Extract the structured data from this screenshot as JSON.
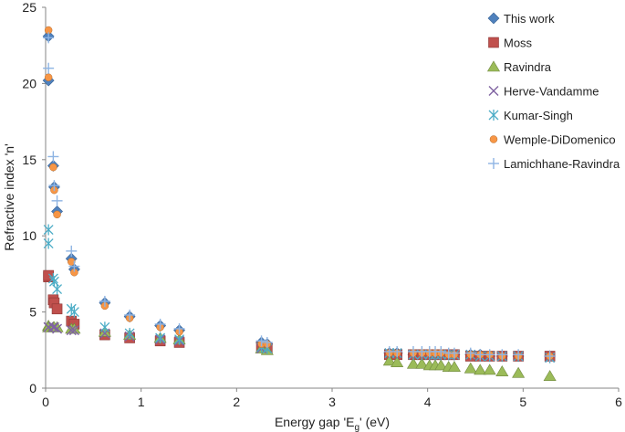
{
  "chart_data": {
    "type": "scatter",
    "title": "",
    "xlabel": "Energy gap 'E_g' (eV)",
    "xlabel_main": "Energy gap 'E",
    "xlabel_sub": "g",
    "xlabel_tail": "' (eV)",
    "ylabel": "Refractive index 'n'",
    "xlim": [
      0,
      6
    ],
    "ylim": [
      0,
      25
    ],
    "x_ticks": [
      0,
      1,
      2,
      3,
      4,
      5,
      6
    ],
    "y_ticks": [
      0,
      5,
      10,
      15,
      20,
      25
    ],
    "grid": false,
    "legend_position": "top-right",
    "x": [
      0.03,
      0.03,
      0.08,
      0.09,
      0.12,
      0.27,
      0.3,
      0.62,
      0.88,
      1.2,
      1.4,
      2.26,
      2.32,
      3.6,
      3.68,
      3.85,
      3.94,
      4.02,
      4.08,
      4.14,
      4.22,
      4.28,
      4.45,
      4.55,
      4.65,
      4.78,
      4.95,
      5.28
    ],
    "series": [
      {
        "name": "This work",
        "marker": "diamond",
        "color": "#4f81bd",
        "values": [
          23.1,
          20.2,
          14.6,
          13.2,
          11.6,
          8.5,
          7.8,
          5.6,
          4.7,
          4.1,
          3.8,
          3.0,
          2.9,
          2.3,
          2.3,
          2.2,
          2.2,
          2.2,
          2.2,
          2.2,
          2.2,
          2.2,
          2.2,
          2.2,
          2.1,
          2.1,
          2.1,
          2.1
        ]
      },
      {
        "name": "Moss",
        "marker": "square",
        "color": "#c0504d",
        "values": [
          7.3,
          7.4,
          5.8,
          5.6,
          5.2,
          4.4,
          4.2,
          3.5,
          3.3,
          3.1,
          3.0,
          2.7,
          2.6,
          2.2,
          2.2,
          2.2,
          2.2,
          2.2,
          2.2,
          2.2,
          2.2,
          2.2,
          2.1,
          2.1,
          2.1,
          2.1,
          2.1,
          2.1
        ]
      },
      {
        "name": "Ravindra",
        "marker": "triangle",
        "color": "#9bbb59",
        "values": [
          4.1,
          4.0,
          4.0,
          4.0,
          4.0,
          3.9,
          3.9,
          3.7,
          3.5,
          3.3,
          3.2,
          2.6,
          2.5,
          1.8,
          1.7,
          1.6,
          1.6,
          1.5,
          1.5,
          1.5,
          1.4,
          1.4,
          1.3,
          1.2,
          1.2,
          1.1,
          1.0,
          0.8
        ]
      },
      {
        "name": "Herve-Vandamme",
        "marker": "x",
        "color": "#8064a2",
        "values": [
          4.0,
          4.0,
          4.0,
          4.0,
          3.9,
          3.8,
          3.8,
          3.6,
          3.4,
          3.2,
          3.1,
          2.6,
          2.6,
          2.3,
          2.3,
          2.2,
          2.2,
          2.2,
          2.2,
          2.2,
          2.2,
          2.2,
          2.2,
          2.1,
          2.1,
          2.1,
          2.1,
          2.0
        ]
      },
      {
        "name": "Kumar-Singh",
        "marker": "asterisk",
        "color": "#4bacc6",
        "values": [
          10.4,
          9.5,
          7.2,
          7.0,
          6.5,
          5.2,
          5.0,
          4.0,
          3.6,
          3.3,
          3.2,
          2.7,
          2.6,
          2.3,
          2.3,
          2.2,
          2.2,
          2.2,
          2.2,
          2.2,
          2.2,
          2.2,
          2.2,
          2.1,
          2.1,
          2.1,
          2.1,
          2.0
        ]
      },
      {
        "name": "Wemple-DiDomenico",
        "marker": "circle",
        "color": "#f79646",
        "values": [
          23.5,
          20.4,
          14.5,
          13.0,
          11.4,
          8.3,
          7.6,
          5.4,
          4.6,
          4.0,
          3.7,
          2.9,
          2.9,
          2.3,
          2.3,
          2.3,
          2.3,
          2.3,
          2.3,
          2.3,
          2.2,
          2.2,
          2.2,
          2.2,
          2.2,
          2.1,
          2.1,
          2.1
        ]
      },
      {
        "name": "Lamichhane-Ravindra",
        "marker": "plus",
        "color": "#8eb4e3",
        "values": [
          23.0,
          21.0,
          15.2,
          13.3,
          12.3,
          9.0,
          8.0,
          5.7,
          4.8,
          4.2,
          3.9,
          3.1,
          3.0,
          2.4,
          2.4,
          2.4,
          2.4,
          2.4,
          2.4,
          2.4,
          2.3,
          2.3,
          2.3,
          2.2,
          2.2,
          2.2,
          2.2,
          2.1
        ]
      }
    ]
  }
}
